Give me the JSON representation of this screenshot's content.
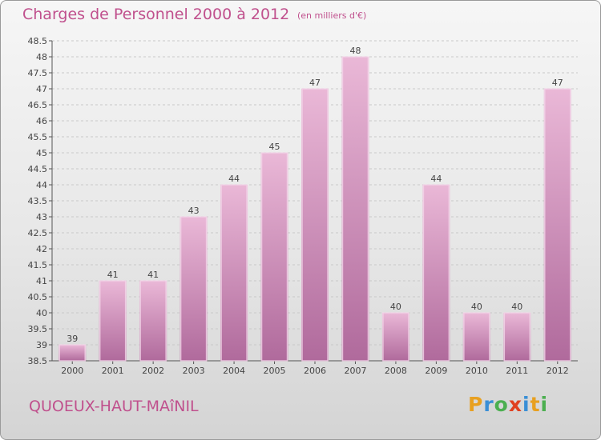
{
  "header": {
    "title": "Charges de Personnel 2000 à 2012",
    "unit_note": "(en milliers d'€)"
  },
  "footer": {
    "commune": "QUOEUX-HAUT-MAîNIL",
    "brand_letters": [
      "P",
      "r",
      "o",
      "x",
      "i",
      "t",
      "i"
    ],
    "brand_colors": [
      "#e8a020",
      "#3a8fd6",
      "#4caf50",
      "#e04020",
      "#3a8fd6",
      "#e8a020",
      "#4caf50"
    ]
  },
  "colors": {
    "bar": "#d98fbf",
    "bar_light": "#eab8d7",
    "bar_dark": "#b06a9c",
    "text": "#c0508d"
  },
  "chart_data": {
    "type": "bar",
    "title": "Charges de Personnel 2000 à 2012",
    "subtitle": "(en milliers d'€)",
    "categories": [
      "2000",
      "2001",
      "2002",
      "2003",
      "2004",
      "2005",
      "2006",
      "2007",
      "2008",
      "2009",
      "2010",
      "2011",
      "2012"
    ],
    "values": [
      39,
      41,
      41,
      43,
      44,
      45,
      47,
      48,
      40,
      44,
      40,
      40,
      47
    ],
    "data_labels": [
      "39",
      "41",
      "41",
      "43",
      "44",
      "45",
      "47",
      "48",
      "40",
      "44",
      "40",
      "40",
      "47"
    ],
    "y_ticks": [
      "38.5",
      "39",
      "39.5",
      "40",
      "40.5",
      "41",
      "41.5",
      "42",
      "42.5",
      "43",
      "43.5",
      "44",
      "44.5",
      "45",
      "45.5",
      "46",
      "46.5",
      "47",
      "47.5",
      "48",
      "48.5"
    ],
    "ylim": [
      38.5,
      48.5
    ],
    "xlabel": "",
    "ylabel": "",
    "grid": true
  }
}
